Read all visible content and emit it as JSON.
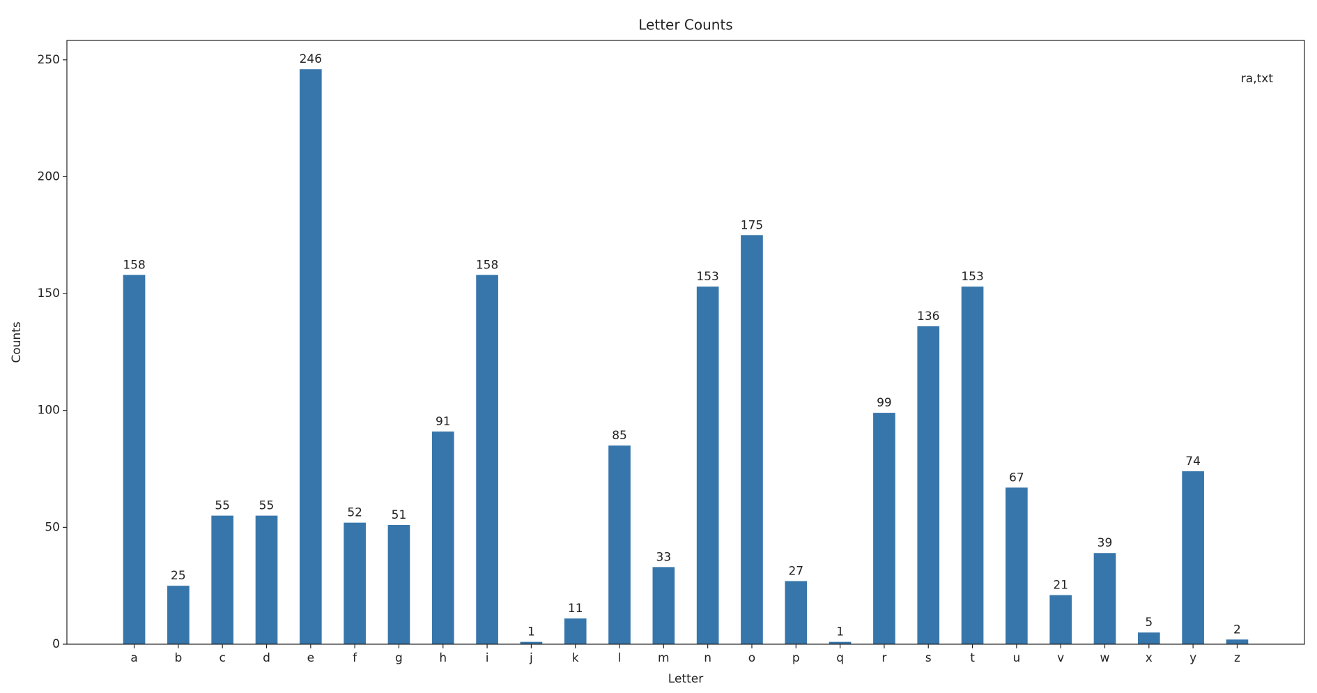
{
  "chart_data": {
    "type": "bar",
    "title": "Letter Counts",
    "x_label": "Letter",
    "y_label": "Counts",
    "annotation": "ra,txt",
    "categories": [
      "a",
      "b",
      "c",
      "d",
      "e",
      "f",
      "g",
      "h",
      "i",
      "j",
      "k",
      "l",
      "m",
      "n",
      "o",
      "p",
      "q",
      "r",
      "s",
      "t",
      "u",
      "v",
      "w",
      "x",
      "y",
      "z"
    ],
    "values": [
      158,
      25,
      55,
      55,
      246,
      52,
      51,
      91,
      158,
      1,
      11,
      85,
      33,
      153,
      175,
      27,
      1,
      99,
      136,
      153,
      67,
      21,
      39,
      5,
      74,
      2
    ],
    "color": "#3776ab",
    "ylim": [
      0,
      258.3
    ],
    "yticks": [
      0,
      50,
      100,
      150,
      200,
      250
    ],
    "grid": false
  }
}
